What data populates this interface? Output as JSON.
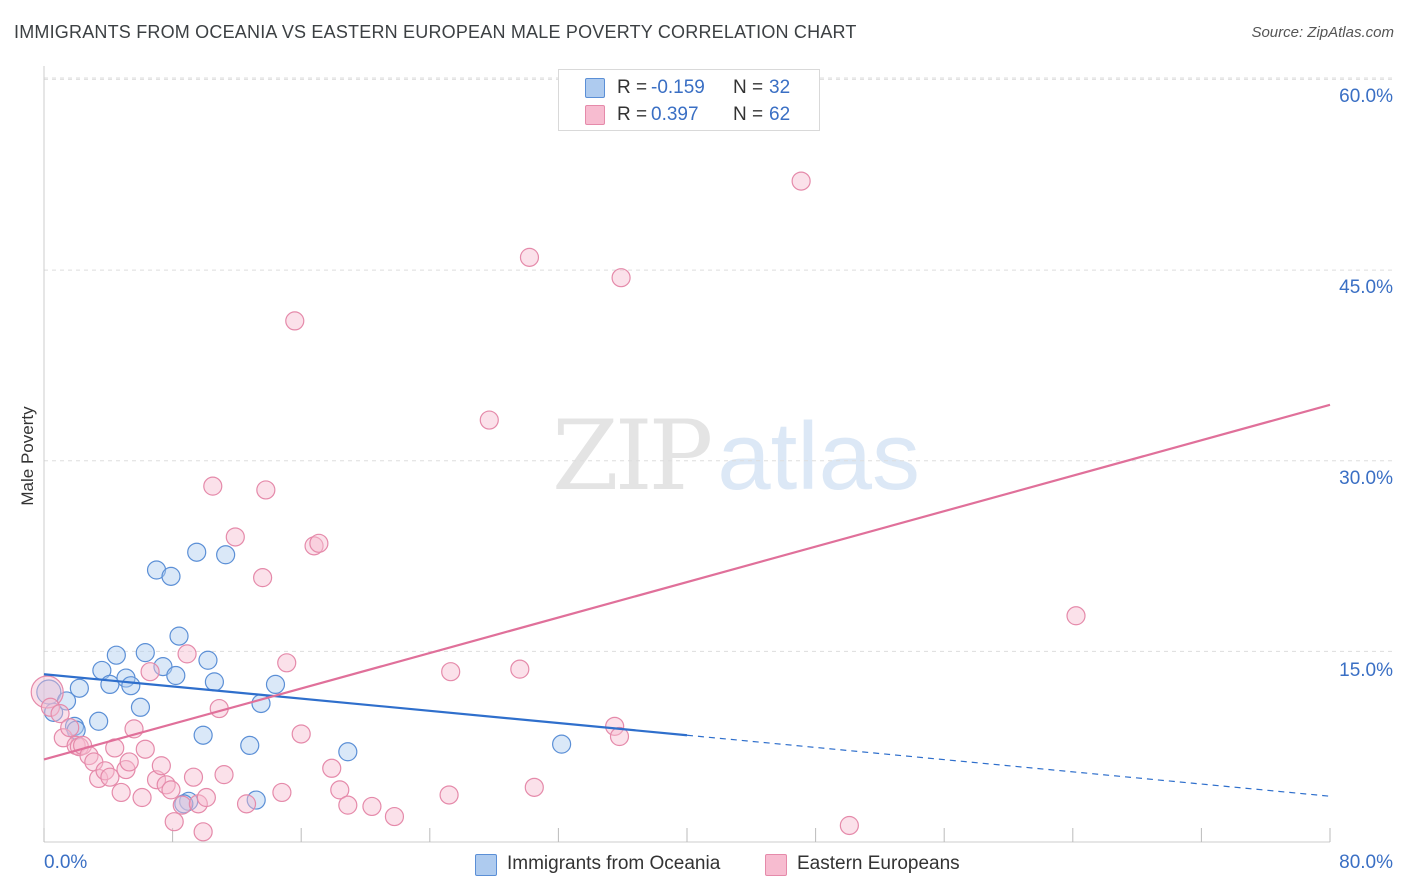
{
  "title": "IMMIGRANTS FROM OCEANIA VS EASTERN EUROPEAN MALE POVERTY CORRELATION CHART",
  "source": "Source: ZipAtlas.com",
  "watermark": {
    "zip": "ZIP",
    "atlas": "atlas"
  },
  "colors": {
    "blue_fill": "#aecbef",
    "blue_stroke": "#5b8fd6",
    "blue_line": "#2f6fcc",
    "pink_fill": "#f7bcd0",
    "pink_stroke": "#e58aaa",
    "pink_line": "#e0709a",
    "tick_text": "#3a6fc4",
    "grid": "#dddddd"
  },
  "legend": {
    "rows": [
      {
        "r_label": "R =",
        "r_value": "-0.159",
        "n_label": "N =",
        "n_value": "32"
      },
      {
        "r_label": "R =",
        "r_value": "0.397",
        "n_label": "N =",
        "n_value": "62"
      }
    ]
  },
  "chart_data": {
    "type": "scatter",
    "ylabel": "Male Poverty",
    "xlim": [
      0,
      80
    ],
    "ylim": [
      0,
      62
    ],
    "x_tick_labels": {
      "min": "0.0%",
      "max": "80.0%"
    },
    "y_ticks": [
      {
        "value": 15,
        "label": "15.0%"
      },
      {
        "value": 30,
        "label": "30.0%"
      },
      {
        "value": 45,
        "label": "45.0%"
      },
      {
        "value": 60,
        "label": "60.0%"
      }
    ],
    "grid": true,
    "legend_position": "top-center",
    "series": [
      {
        "name": "Immigrants from Oceania",
        "color": "blue",
        "trend": {
          "x_start": 0,
          "y_start": 13.2,
          "x_solid_end": 40,
          "y_solid_end": 8.4,
          "x_end": 80,
          "y_end": 3.6
        },
        "points": [
          [
            0.3,
            11.8
          ],
          [
            0.6,
            10.2
          ],
          [
            1.4,
            11.1
          ],
          [
            2.2,
            12.1
          ],
          [
            1.9,
            9.1
          ],
          [
            2.0,
            8.8
          ],
          [
            3.4,
            9.5
          ],
          [
            3.6,
            13.5
          ],
          [
            4.1,
            12.4
          ],
          [
            4.5,
            14.7
          ],
          [
            5.1,
            12.9
          ],
          [
            5.4,
            12.3
          ],
          [
            6.0,
            10.6
          ],
          [
            6.3,
            14.9
          ],
          [
            7.0,
            21.4
          ],
          [
            7.4,
            13.8
          ],
          [
            7.9,
            20.9
          ],
          [
            8.2,
            13.1
          ],
          [
            8.4,
            16.2
          ],
          [
            9.5,
            22.8
          ],
          [
            9.9,
            8.4
          ],
          [
            10.2,
            14.3
          ],
          [
            10.6,
            12.6
          ],
          [
            11.3,
            22.6
          ],
          [
            12.8,
            7.6
          ],
          [
            13.5,
            10.9
          ],
          [
            14.4,
            12.4
          ],
          [
            18.9,
            7.1
          ],
          [
            32.2,
            7.7
          ],
          [
            13.2,
            3.3
          ],
          [
            9.0,
            3.2
          ],
          [
            8.7,
            3.0
          ]
        ]
      },
      {
        "name": "Eastern Europeans",
        "color": "pink",
        "trend": {
          "x_start": 0,
          "y_start": 6.5,
          "x_end": 80,
          "y_end": 34.4
        },
        "points": [
          [
            0.2,
            11.8
          ],
          [
            0.4,
            10.6
          ],
          [
            1.0,
            10.1
          ],
          [
            1.2,
            8.2
          ],
          [
            1.6,
            9.0
          ],
          [
            2.0,
            7.6
          ],
          [
            2.2,
            7.5
          ],
          [
            2.4,
            7.6
          ],
          [
            2.8,
            6.8
          ],
          [
            3.1,
            6.3
          ],
          [
            3.4,
            5.0
          ],
          [
            3.8,
            5.6
          ],
          [
            4.1,
            5.1
          ],
          [
            4.4,
            7.4
          ],
          [
            4.8,
            3.9
          ],
          [
            5.1,
            5.7
          ],
          [
            5.3,
            6.3
          ],
          [
            5.6,
            8.9
          ],
          [
            6.1,
            3.5
          ],
          [
            6.3,
            7.3
          ],
          [
            6.6,
            13.4
          ],
          [
            7.0,
            4.9
          ],
          [
            7.3,
            6.0
          ],
          [
            7.6,
            4.5
          ],
          [
            7.9,
            4.1
          ],
          [
            8.1,
            1.6
          ],
          [
            8.6,
            2.9
          ],
          [
            8.9,
            14.8
          ],
          [
            9.3,
            5.1
          ],
          [
            9.6,
            3.0
          ],
          [
            9.9,
            0.8
          ],
          [
            10.1,
            3.5
          ],
          [
            10.5,
            28.0
          ],
          [
            10.9,
            10.5
          ],
          [
            11.2,
            5.3
          ],
          [
            11.9,
            24.0
          ],
          [
            12.6,
            3.0
          ],
          [
            13.6,
            20.8
          ],
          [
            13.8,
            27.7
          ],
          [
            14.8,
            3.9
          ],
          [
            15.1,
            14.1
          ],
          [
            15.6,
            41.0
          ],
          [
            16.0,
            8.5
          ],
          [
            16.8,
            23.3
          ],
          [
            17.1,
            23.5
          ],
          [
            17.9,
            5.8
          ],
          [
            18.4,
            4.1
          ],
          [
            18.9,
            2.9
          ],
          [
            20.4,
            2.8
          ],
          [
            21.8,
            2.0
          ],
          [
            25.2,
            3.7
          ],
          [
            25.3,
            13.4
          ],
          [
            27.7,
            33.2
          ],
          [
            29.6,
            13.6
          ],
          [
            30.2,
            46.0
          ],
          [
            30.5,
            4.3
          ],
          [
            35.5,
            9.1
          ],
          [
            35.8,
            8.3
          ],
          [
            35.9,
            44.4
          ],
          [
            47.1,
            52.0
          ],
          [
            50.1,
            1.3
          ],
          [
            64.2,
            17.8
          ]
        ]
      }
    ]
  }
}
